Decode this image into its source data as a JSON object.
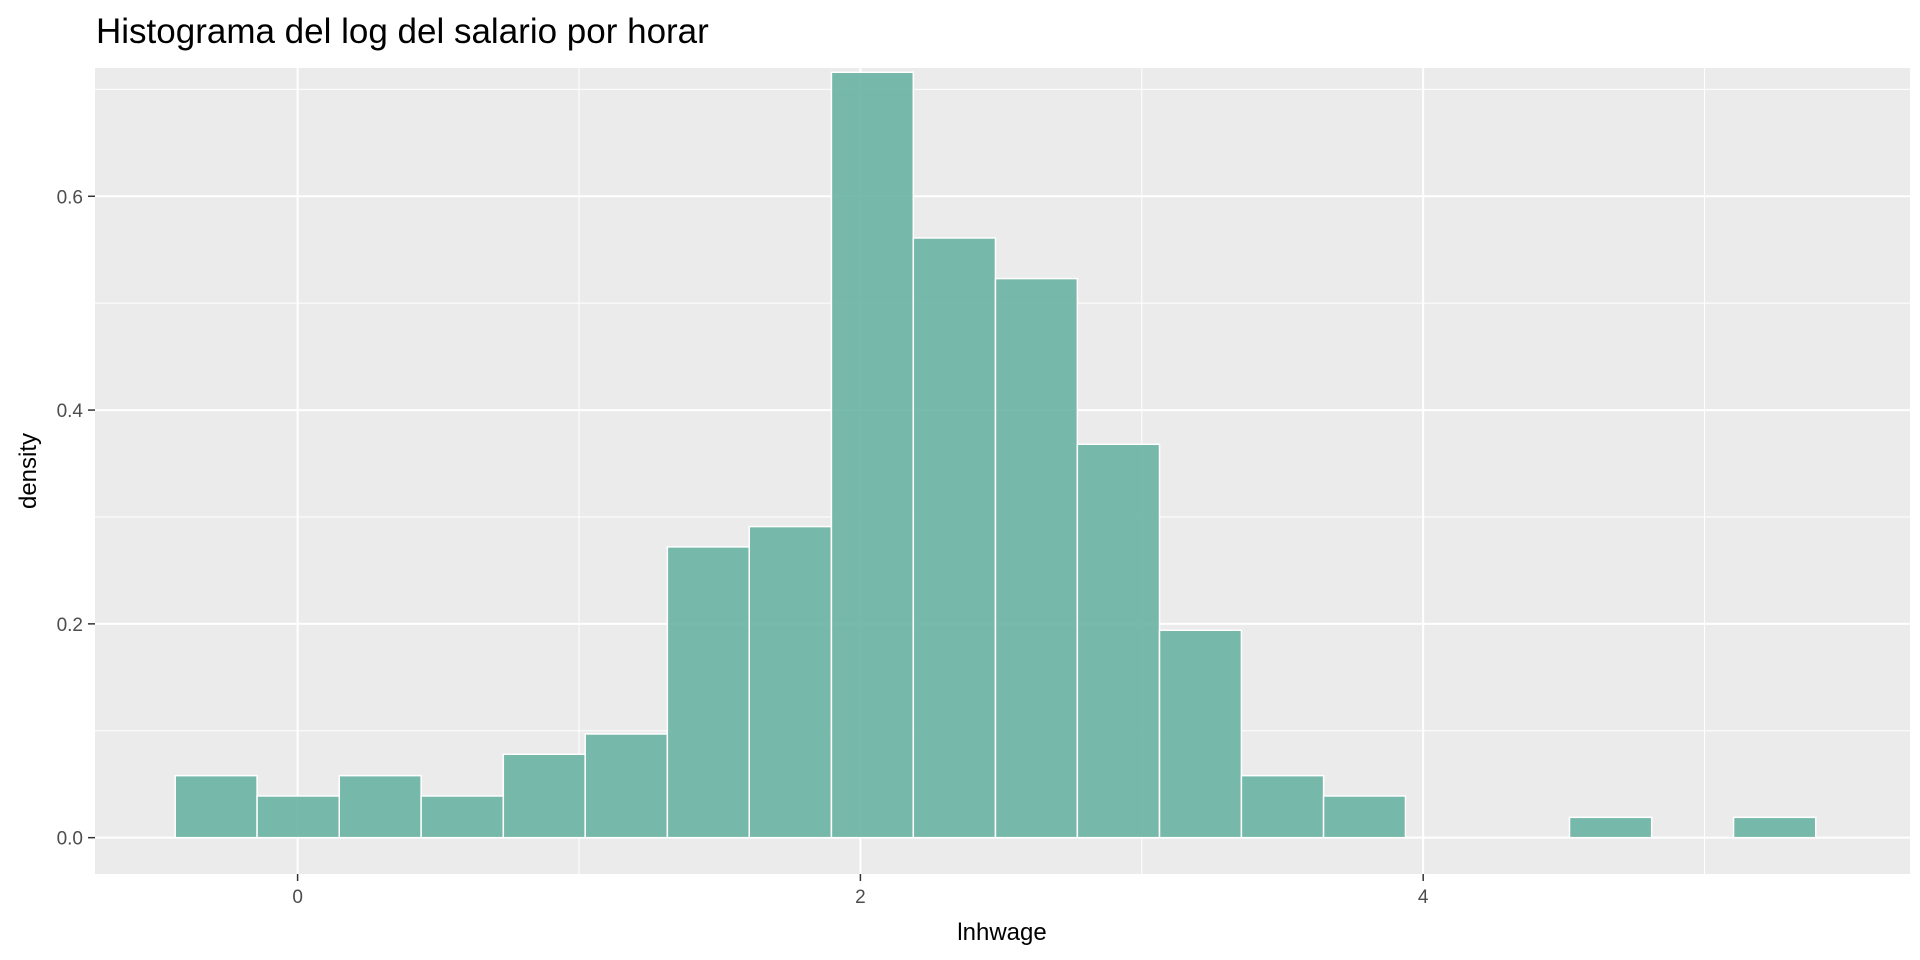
{
  "chart_data": {
    "type": "bar",
    "subtype": "histogram",
    "title": "Histograma del log del salario por horar",
    "xlabel": "lnhwage",
    "ylabel": "density",
    "xlim": [
      -0.72,
      5.73
    ],
    "ylim": [
      -0.034,
      0.72
    ],
    "x_ticks": [
      0,
      2,
      4
    ],
    "x_tick_labels": [
      "0",
      "2",
      "4"
    ],
    "y_ticks": [
      0.0,
      0.2,
      0.4,
      0.6
    ],
    "y_tick_labels": [
      "0.0",
      "0.2",
      "0.4",
      "0.6"
    ],
    "grid": true,
    "bin_width": 0.2915,
    "bins": [
      {
        "x0": -0.435,
        "x1": -0.144,
        "density": 0.058
      },
      {
        "x0": -0.144,
        "x1": 0.148,
        "density": 0.039
      },
      {
        "x0": 0.148,
        "x1": 0.439,
        "density": 0.058
      },
      {
        "x0": 0.439,
        "x1": 0.731,
        "density": 0.039
      },
      {
        "x0": 0.731,
        "x1": 1.022,
        "density": 0.078
      },
      {
        "x0": 1.022,
        "x1": 1.314,
        "density": 0.097
      },
      {
        "x0": 1.314,
        "x1": 1.605,
        "density": 0.272
      },
      {
        "x0": 1.605,
        "x1": 1.897,
        "density": 0.291
      },
      {
        "x0": 1.897,
        "x1": 2.188,
        "density": 0.716
      },
      {
        "x0": 2.188,
        "x1": 2.48,
        "density": 0.561
      },
      {
        "x0": 2.48,
        "x1": 2.771,
        "density": 0.523
      },
      {
        "x0": 2.771,
        "x1": 3.063,
        "density": 0.368
      },
      {
        "x0": 3.063,
        "x1": 3.354,
        "density": 0.194
      },
      {
        "x0": 3.354,
        "x1": 3.646,
        "density": 0.058
      },
      {
        "x0": 3.646,
        "x1": 3.937,
        "density": 0.039
      },
      {
        "x0": 3.937,
        "x1": 4.229,
        "density": 0.0
      },
      {
        "x0": 4.229,
        "x1": 4.52,
        "density": 0.0
      },
      {
        "x0": 4.52,
        "x1": 4.812,
        "density": 0.019
      },
      {
        "x0": 4.812,
        "x1": 5.103,
        "density": 0.0
      },
      {
        "x0": 5.103,
        "x1": 5.395,
        "density": 0.019
      }
    ]
  },
  "colors": {
    "panel_background": "#ebebeb",
    "grid_line": "#ffffff",
    "bar_fill": "#69b3a2",
    "bar_fill_opacity": 0.9,
    "bar_outline": "#ffffff",
    "tick_text": "#4d4d4d",
    "tick_mark": "#333333"
  }
}
